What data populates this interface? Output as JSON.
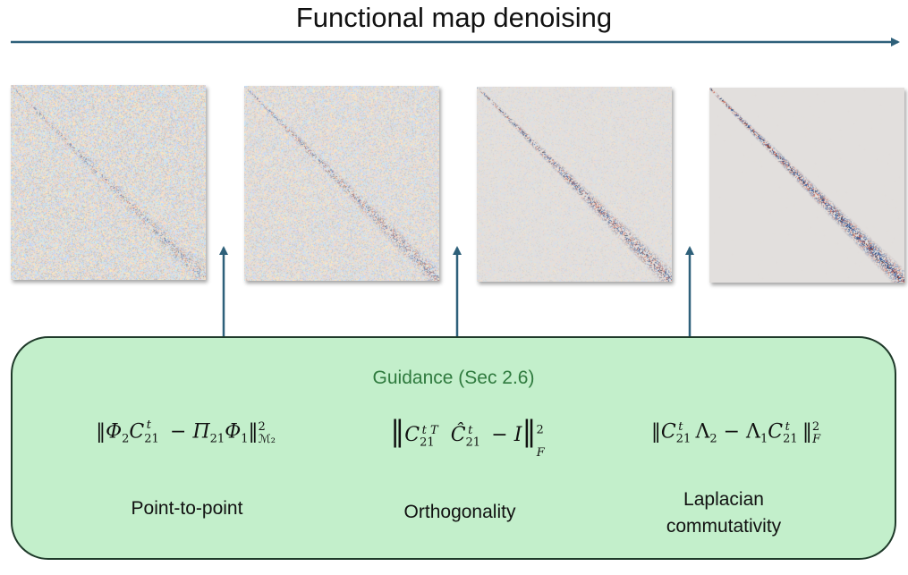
{
  "header": {
    "title": "Functional map denoising"
  },
  "steps": [
    {
      "noise": 1.0,
      "diag": 0.5
    },
    {
      "noise": 0.85,
      "diag": 0.6
    },
    {
      "noise": 0.45,
      "diag": 0.8
    },
    {
      "noise": 0.02,
      "diag": 1.0
    }
  ],
  "guidance": {
    "title": "Guidance (Sec 2.6)",
    "terms": [
      {
        "caption": "Point-to-point"
      },
      {
        "caption": "Orthogonality"
      },
      {
        "caption_line1": "Laplacian",
        "caption_line2": "commutativity"
      }
    ]
  },
  "colors": {
    "arrow": "#2e607a",
    "box_fill": "#c3efcb",
    "box_border": "#1f3a2a",
    "guidance_text": "#2f7a3e"
  }
}
